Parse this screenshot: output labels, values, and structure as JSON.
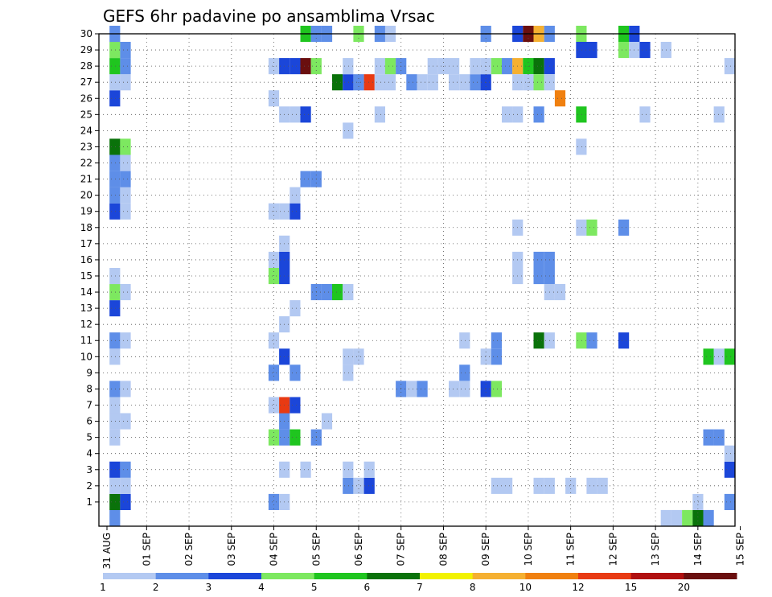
{
  "chart_data": {
    "type": "heatmap",
    "title": "GEFS 6hr padavine po ansamblima Vrsac",
    "xlabel": "",
    "ylabel": "",
    "y_ticks": [
      "1",
      "2",
      "3",
      "4",
      "5",
      "6",
      "7",
      "8",
      "9",
      "10",
      "11",
      "12",
      "13",
      "14",
      "15",
      "16",
      "17",
      "18",
      "19",
      "20",
      "21",
      "22",
      "23",
      "24",
      "25",
      "26",
      "27",
      "28",
      "29",
      "30"
    ],
    "x_ticks": [
      "31 AUG",
      "01 SEP",
      "02 SEP",
      "03 SEP",
      "04 SEP",
      "05 SEP",
      "06 SEP",
      "07 SEP",
      "08 SEP",
      "09 SEP",
      "10 SEP",
      "11 SEP",
      "12 SEP",
      "13 SEP",
      "14 SEP",
      "15 SEP"
    ],
    "x_range_steps": [
      0,
      60
    ],
    "y_range": [
      0,
      30
    ],
    "grid": true,
    "colorbar": {
      "labels": [
        "1",
        "2",
        "3",
        "4",
        "5",
        "6",
        "7",
        "8",
        "10",
        "12",
        "15",
        "20"
      ],
      "colors": [
        "#b3c9f2",
        "#5e8ee8",
        "#1b46d9",
        "#7de860",
        "#1fc51f",
        "#0a720a",
        "#f2f200",
        "#f5b031",
        "#f0800f",
        "#e83a13",
        "#b01010",
        "#6a0f0f"
      ]
    },
    "note_steps": "x values are 6-hour steps after 31 AUG 00UTC (4 steps per day); y values are ensemble member number; v is colour class index into colorbar.colors",
    "cells": [
      {
        "x": 1,
        "y": 0,
        "v": 1
      },
      {
        "x": 1,
        "y": 1,
        "v": 5
      },
      {
        "x": 2,
        "y": 1,
        "v": 2
      },
      {
        "x": 1,
        "y": 2,
        "v": 0
      },
      {
        "x": 2,
        "y": 2,
        "v": 0
      },
      {
        "x": 1,
        "y": 3,
        "v": 2
      },
      {
        "x": 2,
        "y": 3,
        "v": 1
      },
      {
        "x": 1,
        "y": 5,
        "v": 0
      },
      {
        "x": 1,
        "y": 6,
        "v": 0
      },
      {
        "x": 2,
        "y": 6,
        "v": 0
      },
      {
        "x": 1,
        "y": 7,
        "v": 0
      },
      {
        "x": 1,
        "y": 8,
        "v": 1
      },
      {
        "x": 2,
        "y": 8,
        "v": 0
      },
      {
        "x": 1,
        "y": 10,
        "v": 0
      },
      {
        "x": 1,
        "y": 11,
        "v": 1
      },
      {
        "x": 2,
        "y": 11,
        "v": 0
      },
      {
        "x": 1,
        "y": 13,
        "v": 2
      },
      {
        "x": 1,
        "y": 14,
        "v": 3
      },
      {
        "x": 2,
        "y": 14,
        "v": 0
      },
      {
        "x": 1,
        "y": 15,
        "v": 0
      },
      {
        "x": 1,
        "y": 19,
        "v": 2
      },
      {
        "x": 2,
        "y": 19,
        "v": 0
      },
      {
        "x": 1,
        "y": 20,
        "v": 1
      },
      {
        "x": 2,
        "y": 20,
        "v": 0
      },
      {
        "x": 1,
        "y": 21,
        "v": 1
      },
      {
        "x": 2,
        "y": 21,
        "v": 1
      },
      {
        "x": 1,
        "y": 22,
        "v": 1
      },
      {
        "x": 2,
        "y": 22,
        "v": 0
      },
      {
        "x": 1,
        "y": 23,
        "v": 5
      },
      {
        "x": 2,
        "y": 23,
        "v": 3
      },
      {
        "x": 1,
        "y": 26,
        "v": 2
      },
      {
        "x": 1,
        "y": 27,
        "v": 0
      },
      {
        "x": 2,
        "y": 27,
        "v": 0
      },
      {
        "x": 1,
        "y": 28,
        "v": 4
      },
      {
        "x": 2,
        "y": 28,
        "v": 1
      },
      {
        "x": 1,
        "y": 29,
        "v": 3
      },
      {
        "x": 2,
        "y": 29,
        "v": 1
      },
      {
        "x": 1,
        "y": 30,
        "v": 1
      },
      {
        "x": 16,
        "y": 1,
        "v": 1
      },
      {
        "x": 17,
        "y": 1,
        "v": 0
      },
      {
        "x": 17,
        "y": 3,
        "v": 0
      },
      {
        "x": 16,
        "y": 5,
        "v": 3
      },
      {
        "x": 17,
        "y": 5,
        "v": 1
      },
      {
        "x": 18,
        "y": 5,
        "v": 4
      },
      {
        "x": 17,
        "y": 6,
        "v": 1
      },
      {
        "x": 16,
        "y": 7,
        "v": 0
      },
      {
        "x": 17,
        "y": 7,
        "v": 9
      },
      {
        "x": 18,
        "y": 7,
        "v": 2
      },
      {
        "x": 16,
        "y": 9,
        "v": 1
      },
      {
        "x": 18,
        "y": 9,
        "v": 1
      },
      {
        "x": 17,
        "y": 10,
        "v": 2
      },
      {
        "x": 16,
        "y": 11,
        "v": 0
      },
      {
        "x": 17,
        "y": 12,
        "v": 0
      },
      {
        "x": 18,
        "y": 13,
        "v": 0
      },
      {
        "x": 16,
        "y": 15,
        "v": 3
      },
      {
        "x": 17,
        "y": 15,
        "v": 2
      },
      {
        "x": 16,
        "y": 16,
        "v": 0
      },
      {
        "x": 17,
        "y": 16,
        "v": 2
      },
      {
        "x": 17,
        "y": 17,
        "v": 0
      },
      {
        "x": 16,
        "y": 19,
        "v": 0
      },
      {
        "x": 17,
        "y": 19,
        "v": 0
      },
      {
        "x": 18,
        "y": 19,
        "v": 2
      },
      {
        "x": 18,
        "y": 20,
        "v": 0
      },
      {
        "x": 19,
        "y": 21,
        "v": 1
      },
      {
        "x": 20,
        "y": 21,
        "v": 1
      },
      {
        "x": 17,
        "y": 25,
        "v": 0
      },
      {
        "x": 18,
        "y": 25,
        "v": 0
      },
      {
        "x": 19,
        "y": 25,
        "v": 2
      },
      {
        "x": 16,
        "y": 26,
        "v": 0
      },
      {
        "x": 16,
        "y": 28,
        "v": 0
      },
      {
        "x": 17,
        "y": 28,
        "v": 2
      },
      {
        "x": 18,
        "y": 28,
        "v": 2
      },
      {
        "x": 19,
        "y": 28,
        "v": 11
      },
      {
        "x": 20,
        "y": 28,
        "v": 3
      },
      {
        "x": 19,
        "y": 30,
        "v": 4
      },
      {
        "x": 20,
        "y": 30,
        "v": 1
      },
      {
        "x": 21,
        "y": 30,
        "v": 1
      },
      {
        "x": 21,
        "y": 6,
        "v": 0
      },
      {
        "x": 20,
        "y": 5,
        "v": 1
      },
      {
        "x": 19,
        "y": 3,
        "v": 0
      },
      {
        "x": 20,
        "y": 14,
        "v": 1
      },
      {
        "x": 21,
        "y": 14,
        "v": 1
      },
      {
        "x": 22,
        "y": 14,
        "v": 4
      },
      {
        "x": 23,
        "y": 14,
        "v": 0
      },
      {
        "x": 22,
        "y": 27,
        "v": 5
      },
      {
        "x": 23,
        "y": 27,
        "v": 2
      },
      {
        "x": 24,
        "y": 27,
        "v": 1
      },
      {
        "x": 25,
        "y": 27,
        "v": 9
      },
      {
        "x": 23,
        "y": 28,
        "v": 0
      },
      {
        "x": 24,
        "y": 30,
        "v": 3
      },
      {
        "x": 23,
        "y": 2,
        "v": 1
      },
      {
        "x": 24,
        "y": 2,
        "v": 0
      },
      {
        "x": 25,
        "y": 2,
        "v": 2
      },
      {
        "x": 23,
        "y": 3,
        "v": 0
      },
      {
        "x": 25,
        "y": 3,
        "v": 0
      },
      {
        "x": 23,
        "y": 9,
        "v": 0
      },
      {
        "x": 23,
        "y": 10,
        "v": 0
      },
      {
        "x": 24,
        "y": 10,
        "v": 0
      },
      {
        "x": 23,
        "y": 24,
        "v": 0
      },
      {
        "x": 26,
        "y": 25,
        "v": 0
      },
      {
        "x": 26,
        "y": 27,
        "v": 0
      },
      {
        "x": 27,
        "y": 27,
        "v": 0
      },
      {
        "x": 26,
        "y": 28,
        "v": 0
      },
      {
        "x": 27,
        "y": 28,
        "v": 3
      },
      {
        "x": 28,
        "y": 28,
        "v": 1
      },
      {
        "x": 26,
        "y": 30,
        "v": 1
      },
      {
        "x": 27,
        "y": 30,
        "v": 0
      },
      {
        "x": 28,
        "y": 8,
        "v": 1
      },
      {
        "x": 29,
        "y": 8,
        "v": 0
      },
      {
        "x": 30,
        "y": 8,
        "v": 1
      },
      {
        "x": 29,
        "y": 27,
        "v": 1
      },
      {
        "x": 30,
        "y": 27,
        "v": 0
      },
      {
        "x": 31,
        "y": 27,
        "v": 0
      },
      {
        "x": 31,
        "y": 28,
        "v": 0
      },
      {
        "x": 32,
        "y": 28,
        "v": 0
      },
      {
        "x": 33,
        "y": 28,
        "v": 0
      },
      {
        "x": 33,
        "y": 8,
        "v": 0
      },
      {
        "x": 34,
        "y": 8,
        "v": 0
      },
      {
        "x": 34,
        "y": 9,
        "v": 1
      },
      {
        "x": 34,
        "y": 11,
        "v": 0
      },
      {
        "x": 33,
        "y": 27,
        "v": 0
      },
      {
        "x": 34,
        "y": 27,
        "v": 0
      },
      {
        "x": 35,
        "y": 27,
        "v": 1
      },
      {
        "x": 36,
        "y": 27,
        "v": 2
      },
      {
        "x": 35,
        "y": 28,
        "v": 0
      },
      {
        "x": 36,
        "y": 28,
        "v": 0
      },
      {
        "x": 36,
        "y": 8,
        "v": 2
      },
      {
        "x": 37,
        "y": 8,
        "v": 3
      },
      {
        "x": 36,
        "y": 10,
        "v": 0
      },
      {
        "x": 37,
        "y": 10,
        "v": 1
      },
      {
        "x": 37,
        "y": 11,
        "v": 1
      },
      {
        "x": 37,
        "y": 2,
        "v": 0
      },
      {
        "x": 38,
        "y": 2,
        "v": 0
      },
      {
        "x": 36,
        "y": 30,
        "v": 1
      },
      {
        "x": 37,
        "y": 28,
        "v": 3
      },
      {
        "x": 38,
        "y": 28,
        "v": 1
      },
      {
        "x": 39,
        "y": 28,
        "v": 7
      },
      {
        "x": 40,
        "y": 28,
        "v": 4
      },
      {
        "x": 38,
        "y": 25,
        "v": 0
      },
      {
        "x": 39,
        "y": 25,
        "v": 0
      },
      {
        "x": 39,
        "y": 15,
        "v": 0
      },
      {
        "x": 39,
        "y": 16,
        "v": 0
      },
      {
        "x": 39,
        "y": 18,
        "v": 0
      },
      {
        "x": 39,
        "y": 27,
        "v": 0
      },
      {
        "x": 40,
        "y": 27,
        "v": 0
      },
      {
        "x": 39,
        "y": 30,
        "v": 2
      },
      {
        "x": 40,
        "y": 30,
        "v": 11
      },
      {
        "x": 41,
        "y": 30,
        "v": 7
      },
      {
        "x": 42,
        "y": 30,
        "v": 1
      },
      {
        "x": 41,
        "y": 28,
        "v": 5
      },
      {
        "x": 42,
        "y": 28,
        "v": 2
      },
      {
        "x": 41,
        "y": 27,
        "v": 3
      },
      {
        "x": 42,
        "y": 27,
        "v": 0
      },
      {
        "x": 41,
        "y": 25,
        "v": 1
      },
      {
        "x": 41,
        "y": 16,
        "v": 1
      },
      {
        "x": 42,
        "y": 16,
        "v": 1
      },
      {
        "x": 41,
        "y": 15,
        "v": 1
      },
      {
        "x": 42,
        "y": 15,
        "v": 1
      },
      {
        "x": 42,
        "y": 14,
        "v": 0
      },
      {
        "x": 43,
        "y": 14,
        "v": 0
      },
      {
        "x": 41,
        "y": 11,
        "v": 5
      },
      {
        "x": 42,
        "y": 11,
        "v": 0
      },
      {
        "x": 41,
        "y": 2,
        "v": 0
      },
      {
        "x": 42,
        "y": 2,
        "v": 0
      },
      {
        "x": 44,
        "y": 2,
        "v": 0
      },
      {
        "x": 43,
        "y": 26,
        "v": 8
      },
      {
        "x": 45,
        "y": 30,
        "v": 3
      },
      {
        "x": 45,
        "y": 29,
        "v": 2
      },
      {
        "x": 46,
        "y": 29,
        "v": 2
      },
      {
        "x": 45,
        "y": 25,
        "v": 4
      },
      {
        "x": 45,
        "y": 23,
        "v": 0
      },
      {
        "x": 45,
        "y": 18,
        "v": 0
      },
      {
        "x": 46,
        "y": 18,
        "v": 3
      },
      {
        "x": 45,
        "y": 11,
        "v": 3
      },
      {
        "x": 46,
        "y": 11,
        "v": 1
      },
      {
        "x": 46,
        "y": 2,
        "v": 0
      },
      {
        "x": 47,
        "y": 2,
        "v": 0
      },
      {
        "x": 49,
        "y": 30,
        "v": 4
      },
      {
        "x": 50,
        "y": 30,
        "v": 2
      },
      {
        "x": 49,
        "y": 29,
        "v": 3
      },
      {
        "x": 50,
        "y": 29,
        "v": 0
      },
      {
        "x": 51,
        "y": 29,
        "v": 2
      },
      {
        "x": 53,
        "y": 29,
        "v": 0
      },
      {
        "x": 49,
        "y": 18,
        "v": 1
      },
      {
        "x": 49,
        "y": 11,
        "v": 2
      },
      {
        "x": 51,
        "y": 25,
        "v": 0
      },
      {
        "x": 53,
        "y": 0,
        "v": 0
      },
      {
        "x": 54,
        "y": 0,
        "v": 0
      },
      {
        "x": 55,
        "y": 0,
        "v": 3
      },
      {
        "x": 56,
        "y": 0,
        "v": 5
      },
      {
        "x": 57,
        "y": 0,
        "v": 1
      },
      {
        "x": 56,
        "y": 1,
        "v": 0
      },
      {
        "x": 57,
        "y": 5,
        "v": 1
      },
      {
        "x": 58,
        "y": 5,
        "v": 1
      },
      {
        "x": 57,
        "y": 10,
        "v": 4
      },
      {
        "x": 58,
        "y": 10,
        "v": 0
      },
      {
        "x": 59,
        "y": 10,
        "v": 4
      },
      {
        "x": 59,
        "y": 1,
        "v": 1
      },
      {
        "x": 59,
        "y": 3,
        "v": 2
      },
      {
        "x": 59,
        "y": 4,
        "v": 0
      },
      {
        "x": 58,
        "y": 25,
        "v": 0
      },
      {
        "x": 59,
        "y": 28,
        "v": 0
      }
    ]
  }
}
